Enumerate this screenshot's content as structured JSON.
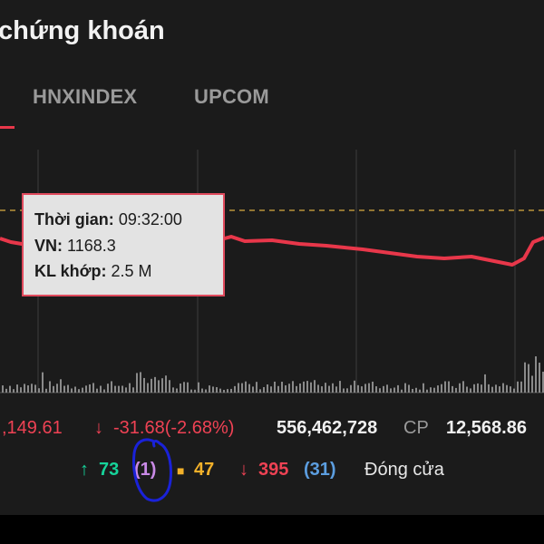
{
  "title": "chứng khoán",
  "tabs": [
    "HNXINDEX",
    "UPCOM"
  ],
  "tooltip": {
    "time_label": "Thời gian:",
    "time_value": "09:32:00",
    "index_label": "VN:",
    "index_value": "1168.3",
    "volume_label": "KL khớp:",
    "volume_value": "2.5 M"
  },
  "stats": {
    "index_value": ",149.61",
    "change_arrow": "↓",
    "change": "-31.68(-2.68%)",
    "volume": "556,462,728",
    "volume_unit": "CP",
    "value": "12,568.86"
  },
  "breadth": {
    "up_arrow": "↑",
    "up_count": "73",
    "ceiling_count": "(1)",
    "unchanged_marker": "■",
    "unchanged_count": "47",
    "down_arrow": "↓",
    "down_count": "395",
    "floor_count": "(31)",
    "status": "Đóng cửa"
  },
  "colors": {
    "price_line": "#e8374a",
    "reference_line": "#b9953a",
    "volume_bars": "#8a8a8a",
    "up": "#16d39a",
    "ceiling": "#c98ae6",
    "unchanged": "#f3b12a",
    "down": "#ef4254",
    "floor": "#5c9ee0",
    "annotation": "#1a22d8"
  }
}
